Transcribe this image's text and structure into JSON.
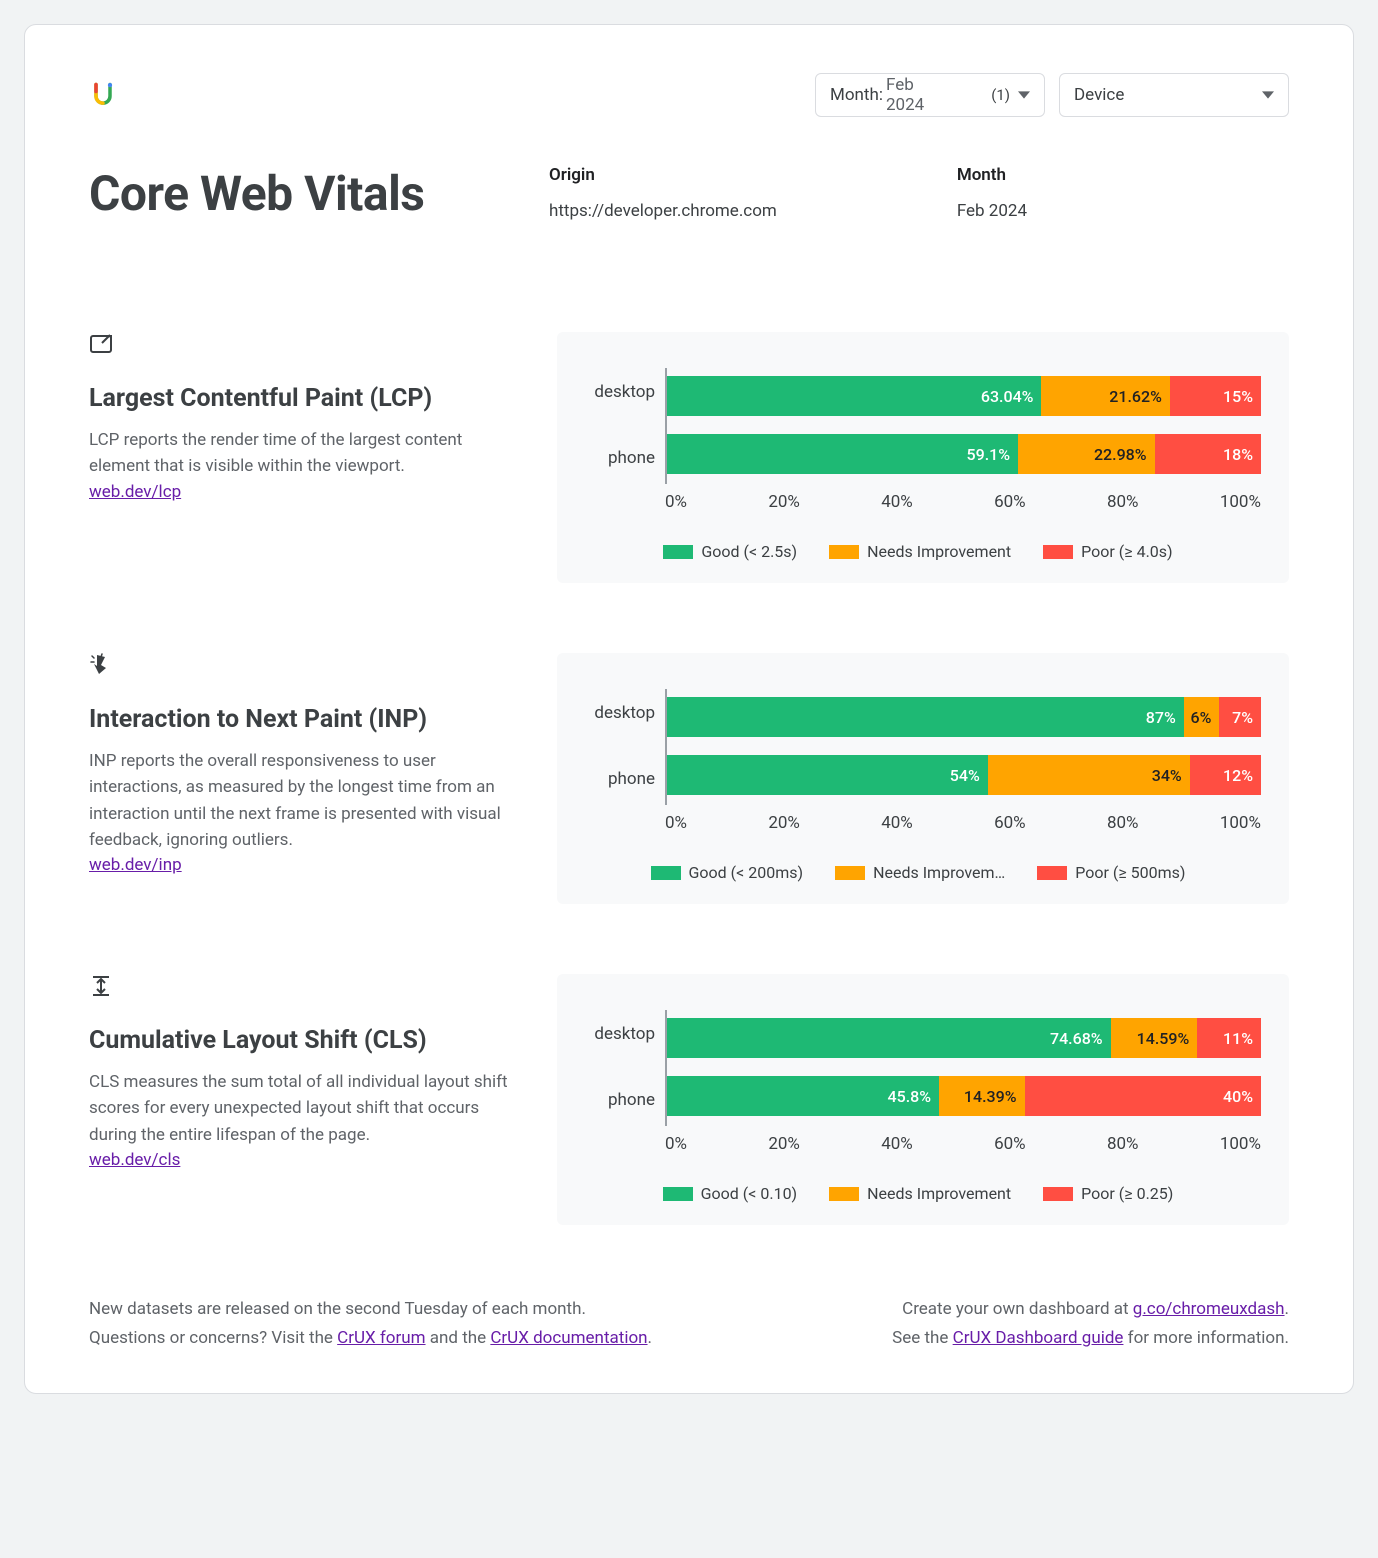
{
  "colors": {
    "good": "#1eb974",
    "warn": "#ffa400",
    "poor": "#ff4e42",
    "panel_bg": "#f8f9fa"
  },
  "selectors": {
    "month": {
      "label": "Month",
      "value": "Feb 2024",
      "count": "(1)"
    },
    "device": {
      "label": "Device"
    }
  },
  "title": "Core Web Vitals",
  "meta": {
    "origin_label": "Origin",
    "origin_value": "https://developer.chrome.com",
    "month_label": "Month",
    "month_value": "Feb 2024"
  },
  "axis_ticks": [
    "0%",
    "20%",
    "40%",
    "60%",
    "80%",
    "100%"
  ],
  "metrics": [
    {
      "id": "lcp",
      "title": "Largest Contentful Paint (LCP)",
      "desc": "LCP reports the render time of the largest content element that is visible within the viewport.",
      "link": "web.dev/lcp",
      "legend": [
        "Good (< 2.5s)",
        "Needs Improvement",
        "Poor (≥ 4.0s)"
      ],
      "rows": [
        {
          "label": "desktop",
          "good": 63.04,
          "good_label": "63.04%",
          "warn": 21.62,
          "warn_label": "21.62%",
          "poor": 15.34,
          "poor_label": "15%"
        },
        {
          "label": "phone",
          "good": 59.1,
          "good_label": "59.1%",
          "warn": 22.98,
          "warn_label": "22.98%",
          "poor": 17.92,
          "poor_label": "18%"
        }
      ]
    },
    {
      "id": "inp",
      "title": "Interaction to Next Paint (INP)",
      "desc": "INP reports the overall responsiveness to user interactions, as measured by the longest time from an interaction until the next frame is presented with visual feedback, ignoring outliers.",
      "link": "web.dev/inp",
      "legend": [
        "Good (< 200ms)",
        "Needs Improvem…",
        "Poor (≥ 500ms)"
      ],
      "rows": [
        {
          "label": "desktop",
          "good": 87.0,
          "good_label": "87%",
          "warn": 6.0,
          "warn_label": "6%",
          "poor": 7.0,
          "poor_label": "7%"
        },
        {
          "label": "phone",
          "good": 54.0,
          "good_label": "54%",
          "warn": 34.0,
          "warn_label": "34%",
          "poor": 12.0,
          "poor_label": "12%"
        }
      ]
    },
    {
      "id": "cls",
      "title": "Cumulative Layout Shift (CLS)",
      "desc": "CLS measures the sum total of all individual layout shift scores for every unexpected layout shift that occurs during the entire lifespan of the page.",
      "link": "web.dev/cls",
      "legend": [
        "Good (< 0.10)",
        "Needs Improvement",
        "Poor (≥ 0.25)"
      ],
      "rows": [
        {
          "label": "desktop",
          "good": 74.68,
          "good_label": "74.68%",
          "warn": 14.59,
          "warn_label": "14.59%",
          "poor": 10.73,
          "poor_label": "11%"
        },
        {
          "label": "phone",
          "good": 45.8,
          "good_label": "45.8%",
          "warn": 14.39,
          "warn_label": "14.39%",
          "poor": 39.81,
          "poor_label": "40%"
        }
      ]
    }
  ],
  "footer": {
    "left1": "New datasets are released on the second Tuesday of each month.",
    "left2a": "Questions or concerns? Visit the ",
    "left2_link1": "CrUX forum",
    "left2b": " and the ",
    "left2_link2": "CrUX documentation",
    "left2c": ".",
    "right1a": "Create your own dashboard at ",
    "right1_link": "g.co/chromeuxdash",
    "right1b": ".",
    "right2a": "See the ",
    "right2_link": "CrUX Dashboard guide",
    "right2b": " for more information."
  }
}
